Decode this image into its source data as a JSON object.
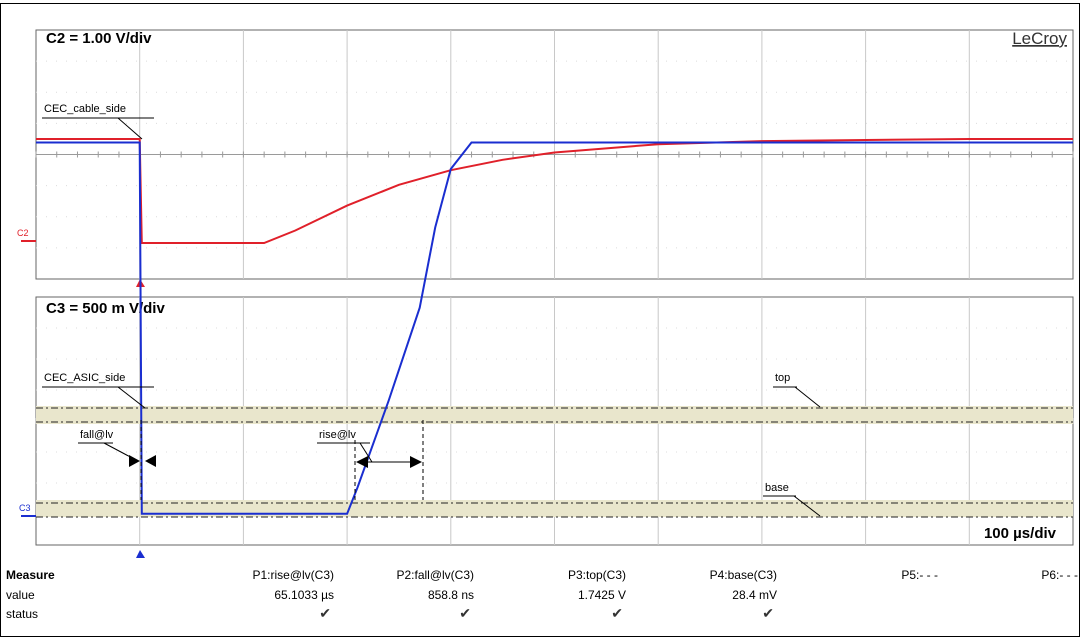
{
  "chart_data": [
    {
      "type": "line",
      "title": "C2 = 1.00 V/div",
      "series": [
        {
          "name": "CEC_cable_side",
          "color": "#e0202a",
          "x": [
            0,
            100,
            102,
            200,
            220,
            250,
            300,
            350,
            400,
            450,
            500,
            600,
            700,
            800,
            900,
            1000
          ],
          "y": [
            1.0,
            1.0,
            0.0,
            0.0,
            0.0,
            0.12,
            0.36,
            0.56,
            0.7,
            0.8,
            0.87,
            0.95,
            0.98,
            0.99,
            1.0,
            1.0
          ]
        }
      ],
      "xlim": [
        0,
        1000
      ]
    },
    {
      "type": "line",
      "title": "C3 = 500 m V/div",
      "series": [
        {
          "name": "CEC_ASIC_side",
          "color": "#1a2ed0",
          "x": [
            0,
            100,
            102,
            200,
            300,
            310,
            340,
            370,
            385,
            400,
            420,
            1000
          ],
          "y": [
            1.7425,
            1.7425,
            0.0284,
            0.0284,
            0.0284,
            0.15,
            0.55,
            0.98,
            1.35,
            1.62,
            1.7425,
            1.7425
          ]
        }
      ],
      "annotations": [
        "top",
        "base",
        "fall@lv",
        "rise@lv"
      ],
      "xlim": [
        0,
        1000
      ]
    }
  ],
  "labels": {
    "brand": "LeCroy",
    "c2_title": "C2 = 1.00 V/div",
    "c3_title": "C3 = 500 m V/div",
    "c2_marker": "C2",
    "c3_marker": "C3",
    "trace_c2": "CEC_cable_side",
    "trace_c3": "CEC_ASIC_side",
    "fall": "fall@lv",
    "rise": "rise@lv",
    "top": "top",
    "base": "base",
    "timebase": "100 µs/div"
  },
  "measure": {
    "header": "Measure",
    "rows": [
      "value",
      "status"
    ],
    "columns": [
      {
        "name": "P1:rise@lv(C3)",
        "value": "65.1033 µs",
        "status": "✔"
      },
      {
        "name": "P2:fall@lv(C3)",
        "value": "858.8 ns",
        "status": "✔"
      },
      {
        "name": "P3:top(C3)",
        "value": "1.7425 V",
        "status": "✔"
      },
      {
        "name": "P4:base(C3)",
        "value": "28.4 mV",
        "status": "✔"
      },
      {
        "name": "P5:- - -",
        "value": "",
        "status": ""
      },
      {
        "name": "P6:- - -",
        "value": "",
        "status": ""
      }
    ]
  }
}
